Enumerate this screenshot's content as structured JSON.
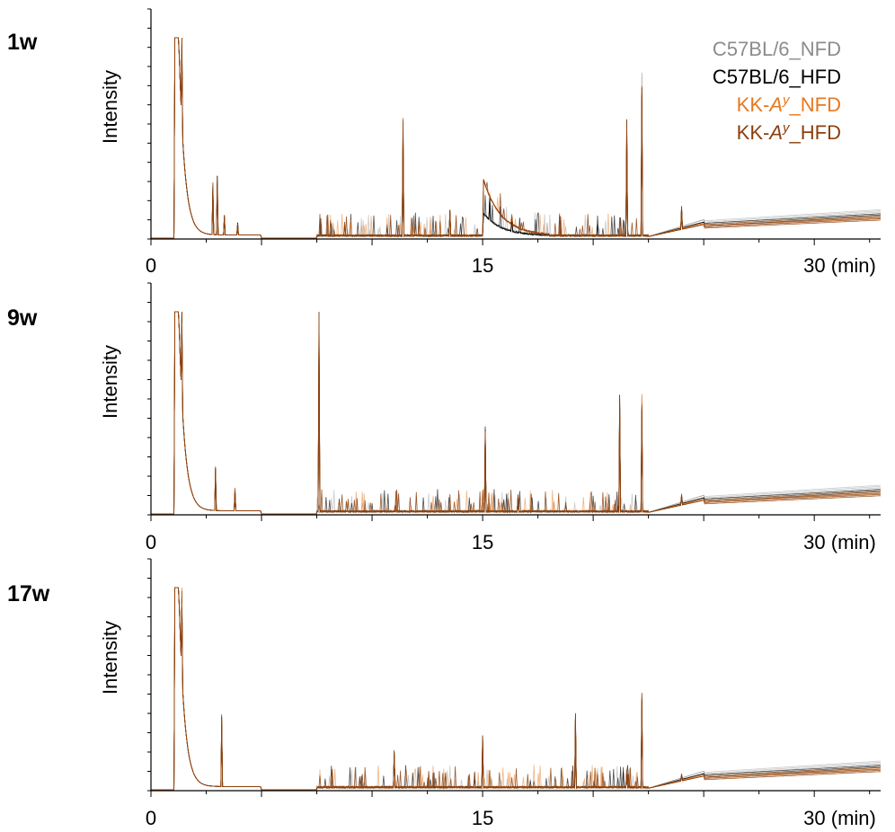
{
  "legend": [
    {
      "prefix": "C57BL/6_NFD",
      "italic": "",
      "suffix": "",
      "color": "#8c8c8c"
    },
    {
      "prefix": "C57BL/6_HFD",
      "italic": "",
      "suffix": "",
      "color": "#000000"
    },
    {
      "prefix": "KK-",
      "italic": "A",
      "sup": "y",
      "suffix": "_NFD",
      "color": "#e8781e"
    },
    {
      "prefix": "KK-",
      "italic": "A",
      "sup": "y",
      "suffix": "_HFD",
      "color": "#8c3f0c"
    }
  ],
  "chart_data": [
    {
      "type": "line",
      "panel_label": "1w",
      "ylabel": "Intensity",
      "xlim": [
        0,
        33
      ],
      "x_ticks": [
        "0",
        "15",
        "30 (min)"
      ],
      "x_tick_values": [
        0,
        15,
        30
      ],
      "baseline_end": {
        "NFD": 0.13,
        "HFD": 0.13,
        "KK_NFD": 0.11,
        "KK_HFD": 0.11
      },
      "peaks": [
        {
          "x": 1.1,
          "y": 1.0
        },
        {
          "x": 1.4,
          "y": 1.0
        },
        {
          "x": 2.8,
          "y": 0.27
        },
        {
          "x": 3.0,
          "y": 0.3
        },
        {
          "x": 3.3,
          "y": 0.12
        },
        {
          "x": 3.9,
          "y": 0.08
        },
        {
          "x": 11.4,
          "y": 0.58
        },
        {
          "x": 13.5,
          "y": 0.14
        },
        {
          "x": 15.3,
          "y": 0.22
        },
        {
          "x": 16.3,
          "y": 0.12
        },
        {
          "x": 21.5,
          "y": 0.58
        },
        {
          "x": 22.2,
          "y": 0.8
        },
        {
          "x": 24.0,
          "y": 0.16
        }
      ]
    },
    {
      "type": "line",
      "panel_label": "9w",
      "ylabel": "Intensity",
      "xlim": [
        0,
        33
      ],
      "x_ticks": [
        "0",
        "15",
        "30 (min)"
      ],
      "x_tick_values": [
        0,
        15,
        30
      ],
      "peaks": [
        {
          "x": 1.1,
          "y": 1.0
        },
        {
          "x": 1.4,
          "y": 1.0
        },
        {
          "x": 2.9,
          "y": 0.23
        },
        {
          "x": 3.8,
          "y": 0.13
        },
        {
          "x": 7.6,
          "y": 1.0
        },
        {
          "x": 15.1,
          "y": 0.42
        },
        {
          "x": 16.6,
          "y": 0.1
        },
        {
          "x": 21.2,
          "y": 0.57
        },
        {
          "x": 22.2,
          "y": 0.57
        },
        {
          "x": 24.0,
          "y": 0.1
        }
      ]
    },
    {
      "type": "line",
      "panel_label": "17w",
      "ylabel": "Intensity",
      "xlim": [
        0,
        33
      ],
      "x_ticks": [
        "0",
        "15",
        "30 (min)"
      ],
      "x_tick_values": [
        0,
        15,
        30
      ],
      "peaks": [
        {
          "x": 1.1,
          "y": 1.0
        },
        {
          "x": 1.4,
          "y": 1.0
        },
        {
          "x": 3.2,
          "y": 0.36
        },
        {
          "x": 11.0,
          "y": 0.19
        },
        {
          "x": 15.0,
          "y": 0.26
        },
        {
          "x": 19.2,
          "y": 0.37
        },
        {
          "x": 21.5,
          "y": 0.1
        },
        {
          "x": 22.2,
          "y": 0.46
        },
        {
          "x": 24.0,
          "y": 0.08
        }
      ]
    }
  ]
}
